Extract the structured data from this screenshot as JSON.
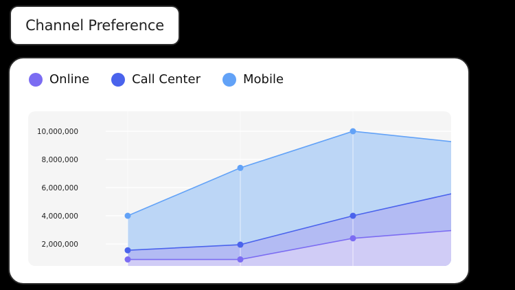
{
  "title": "Channel Preference",
  "legend": [
    {
      "label": "Online",
      "color": "#7b6cf2"
    },
    {
      "label": "Call Center",
      "color": "#4a63ec"
    },
    {
      "label": "Mobile",
      "color": "#62a2f7"
    }
  ],
  "colors": {
    "online": "#7b6cf2",
    "call_center": "#4a63ec",
    "mobile": "#62a2f7",
    "plot_bg": "#f5f5f5",
    "card_bg": "#ffffff",
    "page_bg": "#000000"
  },
  "chart_data": {
    "type": "area",
    "title": "Channel Preference",
    "xlabel": "",
    "ylabel": "",
    "x": [
      1,
      2,
      3,
      4
    ],
    "x_tick_labels": [],
    "y_ticks": [
      "2,000,000",
      "4,000,000",
      "6,000,000",
      "8,000,000",
      "10,000,000"
    ],
    "ylim": [
      0,
      10500000
    ],
    "grid": true,
    "legend_position": "top-left",
    "series": [
      {
        "name": "Online",
        "values": [
          900000,
          900000,
          2400000,
          3000000
        ]
      },
      {
        "name": "Call Center",
        "values": [
          1550000,
          1950000,
          4000000,
          5700000
        ]
      },
      {
        "name": "Mobile",
        "values": [
          4000000,
          7400000,
          10000000,
          9200000
        ]
      }
    ]
  }
}
